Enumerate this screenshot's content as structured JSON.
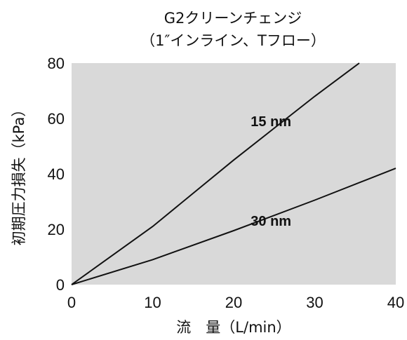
{
  "chart_data": {
    "type": "line",
    "title": "G2クリーンチェンジ",
    "subtitle": "（1″インライン、Tフロー）",
    "xlabel": "流　量（L/min）",
    "ylabel": "初期圧力損失（kPa）",
    "xlim": [
      0,
      40
    ],
    "ylim": [
      0,
      80
    ],
    "x_ticks": [
      "0",
      "10",
      "20",
      "30",
      "40"
    ],
    "y_ticks": [
      "0",
      "20",
      "40",
      "60",
      "80"
    ],
    "grid": false,
    "colors": {
      "plot_bg": "#d9d9d9",
      "line": "#111111"
    },
    "series": [
      {
        "name": "15 nm",
        "x": [
          0,
          10,
          20,
          30,
          35.5
        ],
        "y": [
          0,
          21,
          45,
          68,
          80
        ]
      },
      {
        "name": "30 nm",
        "x": [
          0,
          10,
          20,
          30,
          40
        ],
        "y": [
          0,
          9,
          19.5,
          30.5,
          42
        ]
      }
    ]
  }
}
